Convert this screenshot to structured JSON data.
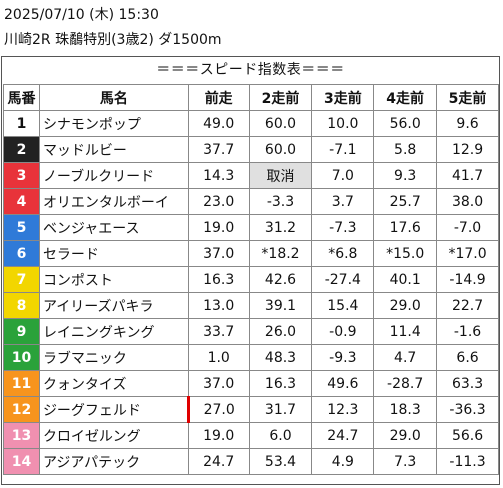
{
  "header": {
    "line1": "2025/07/10 (木) 15:30",
    "line2": "川崎2R 珠鷸特別(3歳2) ダ1500m"
  },
  "banner": "＝＝＝スピード指数表＝＝＝",
  "columns": [
    "馬番",
    "馬名",
    "前走",
    "2走前",
    "3走前",
    "4走前",
    "5走前"
  ],
  "rows": [
    {
      "num": "1",
      "name": "シナモンポップ",
      "v": [
        "49.0",
        "60.0",
        "10.0",
        "56.0",
        "9.6"
      ]
    },
    {
      "num": "2",
      "name": "マッドルビー",
      "v": [
        "37.7",
        "60.0",
        "-7.1",
        "5.8",
        "12.9"
      ]
    },
    {
      "num": "3",
      "name": "ノーブルクリード",
      "v": [
        "14.3",
        "取消",
        "7.0",
        "9.3",
        "41.7"
      ]
    },
    {
      "num": "4",
      "name": "オリエンタルボーイ",
      "v": [
        "23.0",
        "-3.3",
        "3.7",
        "25.7",
        "38.0"
      ]
    },
    {
      "num": "5",
      "name": "ベンジャエース",
      "v": [
        "19.0",
        "31.2",
        "-7.3",
        "17.6",
        "-7.0"
      ]
    },
    {
      "num": "6",
      "name": "セラード",
      "v": [
        "37.0",
        "*18.2",
        "*6.8",
        "*15.0",
        "*17.0"
      ]
    },
    {
      "num": "7",
      "name": "コンポスト",
      "v": [
        "16.3",
        "42.6",
        "-27.4",
        "40.1",
        "-14.9"
      ]
    },
    {
      "num": "8",
      "name": "アイリーズパキラ",
      "v": [
        "13.0",
        "39.1",
        "15.4",
        "29.0",
        "22.7"
      ]
    },
    {
      "num": "9",
      "name": "レイニングキング",
      "v": [
        "33.7",
        "26.0",
        "-0.9",
        "11.4",
        "-1.6"
      ]
    },
    {
      "num": "10",
      "name": "ラブマニック",
      "v": [
        "1.0",
        "48.3",
        "-9.3",
        "4.7",
        "6.6"
      ]
    },
    {
      "num": "11",
      "name": "クォンタイズ",
      "v": [
        "37.0",
        "16.3",
        "49.6",
        "-28.7",
        "63.3"
      ]
    },
    {
      "num": "12",
      "name": "ジーグフェルド",
      "v": [
        "27.0",
        "31.7",
        "12.3",
        "18.3",
        "-36.3"
      ]
    },
    {
      "num": "13",
      "name": "クロイゼルング",
      "v": [
        "19.0",
        "6.0",
        "24.7",
        "29.0",
        "56.6"
      ]
    },
    {
      "num": "14",
      "name": "アジアパテック",
      "v": [
        "24.7",
        "53.4",
        "4.9",
        "7.3",
        "-11.3"
      ]
    }
  ],
  "frame_colors": [
    "#ffffff",
    "#222222",
    "#e8333a",
    "#e8333a",
    "#2f7ad8",
    "#2f7ad8",
    "#f2d600",
    "#f2d600",
    "#2aa23a",
    "#2aa23a",
    "#f7941d",
    "#f7941d",
    "#f090b0",
    "#f090b0"
  ],
  "number_text_colors": [
    "#111111",
    "#ffffff",
    "#ffffff",
    "#ffffff",
    "#ffffff",
    "#ffffff",
    "#ffffff",
    "#ffffff",
    "#ffffff",
    "#ffffff",
    "#ffffff",
    "#ffffff",
    "#ffffff",
    "#ffffff"
  ],
  "cancel_cell_color": "#e0e0e0",
  "mark_color": "#e00000"
}
